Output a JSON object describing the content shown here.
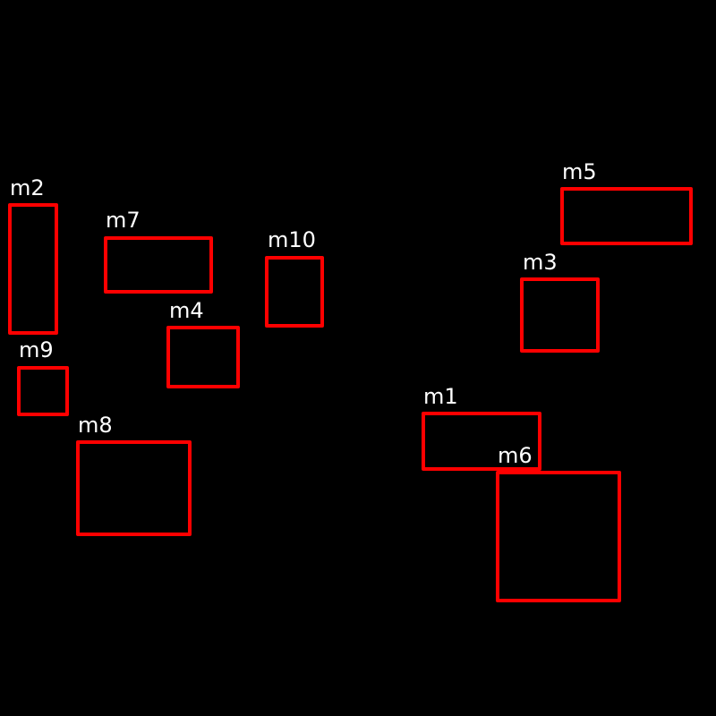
{
  "background_color": "#000000",
  "box_color": "#ff0000",
  "label_color": "#ffffff",
  "boxes": [
    {
      "label": "m1"
    },
    {
      "label": "m2"
    },
    {
      "label": "m3"
    },
    {
      "label": "m4"
    },
    {
      "label": "m5"
    },
    {
      "label": "m6"
    },
    {
      "label": "m7"
    },
    {
      "label": "m8"
    },
    {
      "label": "m9"
    },
    {
      "label": "m10"
    }
  ]
}
